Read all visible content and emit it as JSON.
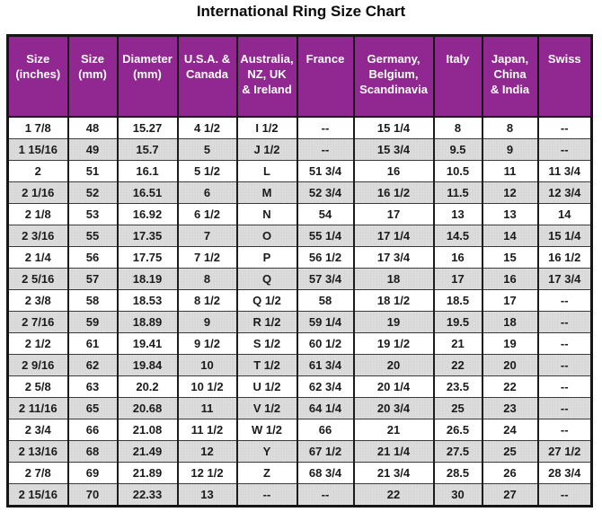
{
  "page": {
    "title": "International Ring Size Chart"
  },
  "colors": {
    "header_bg": "#912891",
    "header_text": "#ffffff",
    "row_alt_bg": "#d8d8d8",
    "border": "#151515"
  },
  "table": {
    "headers": [
      "Size\n(inches)",
      "Size\n(mm)",
      "Diameter\n(mm)",
      "U.S.A. &\nCanada",
      "Australia,\nNZ, UK\n& Ireland",
      "France",
      "Germany,\nBelgium,\nScandinavia",
      "Italy",
      "Japan,\nChina\n& India",
      "Swiss"
    ],
    "rows": [
      [
        "1 7/8",
        "48",
        "15.27",
        "4 1/2",
        "I 1/2",
        "--",
        "15 1/4",
        "8",
        "8",
        "--"
      ],
      [
        "1 15/16",
        "49",
        "15.7",
        "5",
        "J 1/2",
        "--",
        "15 3/4",
        "9.5",
        "9",
        "--"
      ],
      [
        "2",
        "51",
        "16.1",
        "5 1/2",
        "L",
        "51 3/4",
        "16",
        "10.5",
        "11",
        "11 3/4"
      ],
      [
        "2 1/16",
        "52",
        "16.51",
        "6",
        "M",
        "52 3/4",
        "16 1/2",
        "11.5",
        "12",
        "12 3/4"
      ],
      [
        "2 1/8",
        "53",
        "16.92",
        "6 1/2",
        "N",
        "54",
        "17",
        "13",
        "13",
        "14"
      ],
      [
        "2 3/16",
        "55",
        "17.35",
        "7",
        "O",
        "55 1/4",
        "17 1/4",
        "14.5",
        "14",
        "15 1/4"
      ],
      [
        "2 1/4",
        "56",
        "17.75",
        "7 1/2",
        "P",
        "56 1/2",
        "17 3/4",
        "16",
        "15",
        "16 1/2"
      ],
      [
        "2 5/16",
        "57",
        "18.19",
        "8",
        "Q",
        "57 3/4",
        "18",
        "17",
        "16",
        "17 3/4"
      ],
      [
        "2 3/8",
        "58",
        "18.53",
        "8 1/2",
        "Q 1/2",
        "58",
        "18 1/2",
        "18.5",
        "17",
        "--"
      ],
      [
        "2 7/16",
        "59",
        "18.89",
        "9",
        "R 1/2",
        "59 1/4",
        "19",
        "19.5",
        "18",
        "--"
      ],
      [
        "2 1/2",
        "61",
        "19.41",
        "9 1/2",
        "S 1/2",
        "60 1/2",
        "19 1/2",
        "21",
        "19",
        "--"
      ],
      [
        "2 9/16",
        "62",
        "19.84",
        "10",
        "T 1/2",
        "61 3/4",
        "20",
        "22",
        "20",
        "--"
      ],
      [
        "2 5/8",
        "63",
        "20.2",
        "10 1/2",
        "U 1/2",
        "62 3/4",
        "20 1/4",
        "23.5",
        "22",
        "--"
      ],
      [
        "2 11/16",
        "65",
        "20.68",
        "11",
        "V 1/2",
        "64 1/4",
        "20 3/4",
        "25",
        "23",
        "--"
      ],
      [
        "2 3/4",
        "66",
        "21.08",
        "11 1/2",
        "W 1/2",
        "66",
        "21",
        "26.5",
        "24",
        "--"
      ],
      [
        "2 13/16",
        "68",
        "21.49",
        "12",
        "Y",
        "67 1/2",
        "21 1/4",
        "27.5",
        "25",
        "27 1/2"
      ],
      [
        "2 7/8",
        "69",
        "21.89",
        "12 1/2",
        "Z",
        "68 3/4",
        "21 3/4",
        "28.5",
        "26",
        "28 3/4"
      ],
      [
        "2 15/16",
        "70",
        "22.33",
        "13",
        "--",
        "--",
        "22",
        "30",
        "27",
        "--"
      ]
    ]
  }
}
